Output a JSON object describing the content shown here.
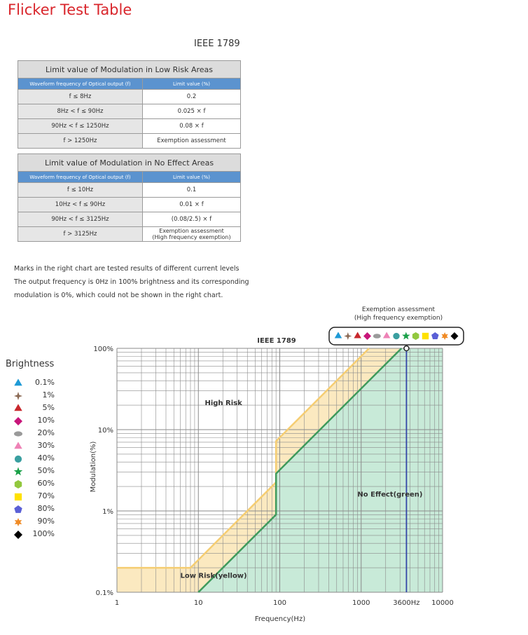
{
  "page_title": "Flicker Test Table",
  "standard": "IEEE 1789",
  "table": {
    "low_risk": {
      "title": "Limit value of Modulation in Low Risk Areas",
      "col_freq": "Waveform frequency of Optical output (f)",
      "col_limit": "Limit value (%)",
      "rows": [
        {
          "freq": "f ≤ 8Hz",
          "limit": "0.2"
        },
        {
          "freq": "8Hz < f ≤ 90Hz",
          "limit": "0.025 × f"
        },
        {
          "freq": "90Hz < f ≤ 1250Hz",
          "limit": "0.08 × f"
        },
        {
          "freq": "f > 1250Hz",
          "limit": "Exemption assessment"
        }
      ]
    },
    "no_effect": {
      "title": "Limit value of Modulation in No Effect Areas",
      "col_freq": "Waveform frequency of Optical output (f)",
      "col_limit": "Limit value (%)",
      "rows": [
        {
          "freq": "f ≤ 10Hz",
          "limit": "0.1",
          "limit2": ""
        },
        {
          "freq": "10Hz < f ≤ 90Hz",
          "limit": "0.01 × f",
          "limit2": ""
        },
        {
          "freq": "90Hz < f ≤ 3125Hz",
          "limit": "(0.08/2.5) × f",
          "limit2": ""
        },
        {
          "freq": "f > 3125Hz",
          "limit": "Exemption assessment",
          "limit2": "(High frequency exemption)"
        }
      ]
    }
  },
  "note": {
    "line1": "Marks in the right chart are tested results of different current levels",
    "line2": "The output frequency is 0Hz in 100% brightness and its corresponding",
    "line3": "modulation is 0%, which could not be shown in the right chart."
  },
  "exemption": {
    "line1": "Exemption assessment",
    "line2": "(High frequency exemption)"
  },
  "legend": {
    "title": "Brightness",
    "items": [
      {
        "label": "0.1%",
        "shape": "triangle",
        "color": "#1e9ad6"
      },
      {
        "label": "1%",
        "shape": "star4",
        "color": "#8b6a55"
      },
      {
        "label": "5%",
        "shape": "triangle",
        "color": "#c8282d"
      },
      {
        "label": "10%",
        "shape": "diamond",
        "color": "#c8157a"
      },
      {
        "label": "20%",
        "shape": "ellipse",
        "color": "#9a9a9a"
      },
      {
        "label": "30%",
        "shape": "triangle",
        "color": "#ee82b6"
      },
      {
        "label": "40%",
        "shape": "circle",
        "color": "#3a9fa0"
      },
      {
        "label": "50%",
        "shape": "star5",
        "color": "#1aa048"
      },
      {
        "label": "60%",
        "shape": "hexagon",
        "color": "#92c83e"
      },
      {
        "label": "70%",
        "shape": "square",
        "color": "#ffe100"
      },
      {
        "label": "80%",
        "shape": "pentagon",
        "color": "#5a5fd6"
      },
      {
        "label": "90%",
        "shape": "star6",
        "color": "#f08a24"
      },
      {
        "label": "100%",
        "shape": "diamond",
        "color": "#000000"
      }
    ]
  },
  "chart_data": {
    "type": "line",
    "title": "IEEE 1789",
    "xlabel": "Frequency(Hz)",
    "ylabel": "Modulation(%)",
    "x_scale": "log",
    "y_scale": "log",
    "xlim": [
      1,
      10000
    ],
    "ylim": [
      0.1,
      100
    ],
    "x_ticks": [
      1,
      10,
      100,
      1000,
      10000
    ],
    "x_tick_labels": [
      "1",
      "10",
      "100",
      "1000",
      "10000"
    ],
    "y_ticks": [
      0.1,
      1,
      10,
      100
    ],
    "y_tick_labels": [
      "0.1%",
      "1%",
      "10%",
      "100%"
    ],
    "grid": true,
    "marker_line": {
      "x": 3600,
      "label": "3600Hz",
      "color": "#3345a8"
    },
    "series": [
      {
        "name": "",
        "role": "low-risk-boundary",
        "color": "#f5cd72",
        "points": [
          [
            1,
            0.2
          ],
          [
            8,
            0.2
          ],
          [
            90,
            2.25
          ],
          [
            90,
            7.2
          ],
          [
            1250,
            100
          ]
        ]
      },
      {
        "name": "",
        "role": "no-effect-boundary",
        "color": "#3f9a5c",
        "points": [
          [
            10,
            0.1
          ],
          [
            90,
            0.9
          ],
          [
            90,
            2.88
          ],
          [
            3125,
            100
          ]
        ]
      }
    ],
    "region_labels": [
      {
        "text": "High Risk",
        "x": 12,
        "y": 20,
        "color": "#555555"
      },
      {
        "text": "Low Risk(yellow)",
        "x": 6,
        "y": 0.15,
        "color": "#555555"
      },
      {
        "text": "No Effect(green)",
        "x": 900,
        "y": 1.5,
        "color": "#555555"
      }
    ],
    "region_colors": {
      "low_risk": "#fbe9c0",
      "no_effect": "#c8ead8",
      "grid": "#8a8a8a"
    }
  }
}
